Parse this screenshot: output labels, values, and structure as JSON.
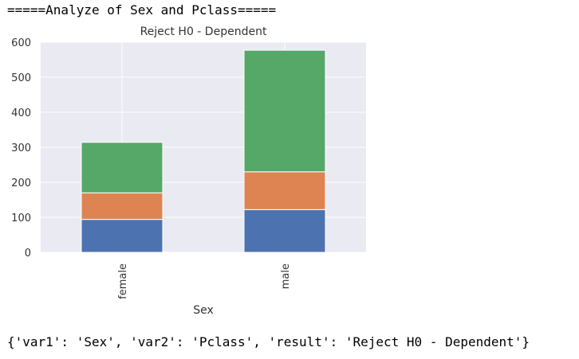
{
  "header_text": "=====Analyze of Sex and Pclass=====",
  "footer_text": "{'var1': 'Sex', 'var2': 'Pclass', 'result': 'Reject H0 - Dependent'}",
  "chart_data": {
    "type": "bar",
    "stacked": true,
    "title": "Reject H0 - Dependent",
    "xlabel": "Sex",
    "ylabel": "",
    "categories": [
      "female",
      "male"
    ],
    "series": [
      {
        "values": [
          94,
          122
        ],
        "color": "#4c72b0"
      },
      {
        "values": [
          76,
          108
        ],
        "color": "#dd8452"
      },
      {
        "values": [
          144,
          347
        ],
        "color": "#55a868"
      }
    ],
    "ylim": [
      0,
      600
    ],
    "yticks": [
      0,
      100,
      200,
      300,
      400,
      500,
      600
    ],
    "grid": true,
    "legend": "none"
  }
}
